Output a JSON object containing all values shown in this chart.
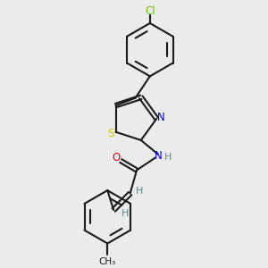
{
  "background_color": "#ebebeb",
  "bond_color": "#1a1a1a",
  "atom_colors": {
    "Cl": "#66cc00",
    "S": "#cccc00",
    "N": "#0000ee",
    "O": "#ee0000",
    "H": "#558888",
    "C": "#1a1a1a"
  },
  "figsize": [
    3.0,
    3.0
  ],
  "dpi": 100
}
